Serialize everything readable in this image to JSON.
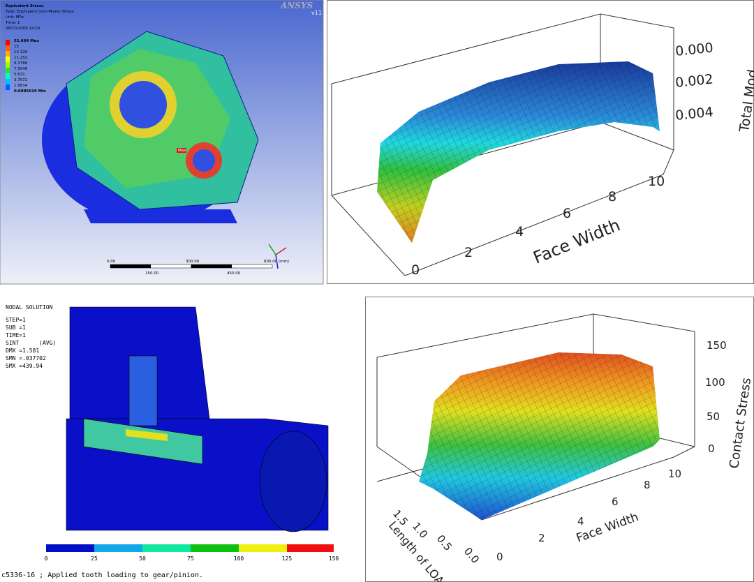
{
  "ansys_result": {
    "title": "Equivalent Stress",
    "type": "Type: Equivalent (von-Mises) Stress",
    "unit": "Unit: MPa",
    "time": "Time: 1",
    "date": "28/10/2008 14:24",
    "brand": "ANSYS",
    "version": "v11",
    "legend": [
      "51.664 Max",
      "15",
      "13.126",
      "11.252",
      "9.3786",
      "7.5048",
      "5.631",
      "3.7572",
      "1.8834",
      "0.0095619 Min"
    ],
    "max_tag": "Max",
    "scale_top": [
      "0.00",
      "300.00",
      "600.00 (mm)"
    ],
    "scale_bottom": [
      "150.00",
      "450.00"
    ]
  },
  "modification_plot": {
    "z_ticks": [
      "0.000",
      "0.002",
      "0.004"
    ],
    "z_label": "Total Mod",
    "x_ticks": [
      "0",
      "2",
      "4",
      "6",
      "8",
      "10"
    ],
    "x_label": "Face Width"
  },
  "nodal_solution": {
    "title": "NODAL SOLUTION",
    "info": [
      "STEP=1",
      "SUB =1",
      "TIME=1",
      "SINT      (AVG)",
      "DMX =1.581",
      "SMN =.037702",
      "SMX =439.94"
    ],
    "colorbar_ticks": [
      "0",
      "25",
      "50",
      "75",
      "100",
      "125",
      "150"
    ],
    "footer": "c5336-16 ; Applied tooth loading to gear/pinion."
  },
  "contact_stress_plot": {
    "z_ticks": [
      "150",
      "100",
      "50",
      "0"
    ],
    "z_label": "Contact Stress",
    "x_ticks": [
      "0",
      "2",
      "4",
      "6",
      "8",
      "10"
    ],
    "x_label": "Face Width",
    "y_ticks": [
      "1.5",
      "1.0",
      "0.5",
      "0.0"
    ],
    "y_label": "Length of LOA"
  }
}
